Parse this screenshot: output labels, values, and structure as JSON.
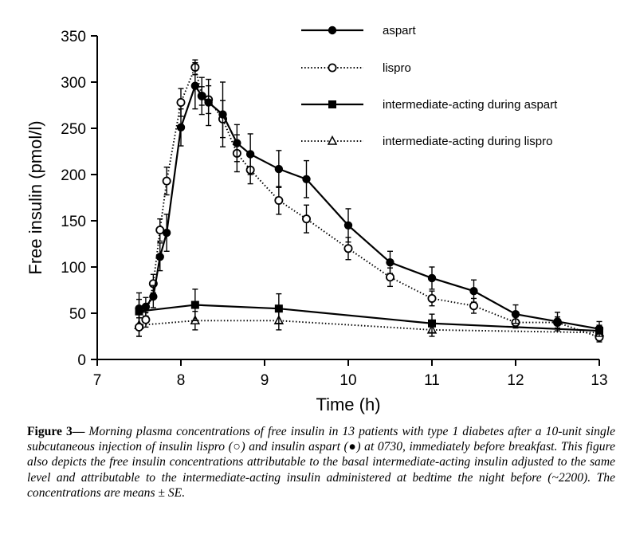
{
  "chart_data": {
    "type": "line",
    "xlabel": "Time (h)",
    "ylabel": "Free insulin (pmol/l)",
    "xlim": [
      7,
      13
    ],
    "ylim": [
      0,
      350
    ],
    "xticks": [
      7,
      8,
      9,
      10,
      11,
      12,
      13
    ],
    "yticks": [
      0,
      50,
      100,
      150,
      200,
      250,
      300,
      350
    ],
    "legend_position": "top-right",
    "series": [
      {
        "name": "aspart",
        "line": "solid",
        "marker": "filled-circle",
        "x": [
          7.5,
          7.58,
          7.67,
          7.75,
          7.83,
          8.0,
          8.17,
          8.25,
          8.33,
          8.5,
          8.67,
          8.83,
          9.17,
          9.5,
          10.0,
          10.5,
          11.0,
          11.5,
          12.0,
          12.5,
          13.0
        ],
        "y": [
          55,
          57,
          68,
          111,
          137,
          251,
          296,
          285,
          278,
          265,
          234,
          222,
          206,
          195,
          145,
          105,
          88,
          74,
          49,
          41,
          33
        ],
        "err": [
          10,
          10,
          12,
          15,
          20,
          20,
          25,
          20,
          25,
          35,
          20,
          22,
          20,
          20,
          18,
          12,
          12,
          12,
          10,
          10,
          8
        ]
      },
      {
        "name": "lispro",
        "line": "dotted",
        "marker": "open-circle",
        "x": [
          7.5,
          7.58,
          7.67,
          7.75,
          7.83,
          8.0,
          8.17,
          8.25,
          8.33,
          8.5,
          8.67,
          8.83,
          9.17,
          9.5,
          10.0,
          10.5,
          11.0,
          11.5,
          12.0,
          12.5,
          13.0
        ],
        "y": [
          35,
          43,
          82,
          140,
          193,
          278,
          316,
          285,
          281,
          260,
          223,
          205,
          172,
          152,
          120,
          89,
          66,
          58,
          40,
          40,
          24
        ],
        "err": [
          10,
          8,
          10,
          12,
          15,
          15,
          8,
          10,
          15,
          20,
          20,
          15,
          15,
          15,
          12,
          10,
          8,
          8,
          6,
          6,
          5
        ]
      },
      {
        "name": "intermediate-acting during aspart",
        "line": "solid",
        "marker": "filled-square",
        "x": [
          7.5,
          8.17,
          9.17,
          11.0,
          13.0
        ],
        "y": [
          52,
          59,
          55,
          39,
          31
        ],
        "err": [
          20,
          17,
          16,
          10,
          6
        ]
      },
      {
        "name": "intermediate-acting during lispro",
        "line": "dotted",
        "marker": "open-triangle",
        "x": [
          7.5,
          8.17,
          9.17,
          11.0,
          13.0
        ],
        "y": [
          37,
          42,
          42,
          32,
          29
        ],
        "err": [
          12,
          10,
          10,
          7,
          5
        ]
      }
    ]
  },
  "caption": {
    "label": "Figure 3—",
    "text": " Morning plasma concentrations of free insulin in 13 patients with type 1 diabetes after a 10-unit single subcutaneous injection of insulin lispro (○) and insulin aspart (●) at 0730, immediately before breakfast. This figure also depicts the free insulin concentrations attributable to the basal intermediate-acting insulin adjusted to the same level and attributable to the intermediate-acting insulin administered at bedtime the night before (~2200). The concentrations are means ± SE."
  },
  "colors": {
    "ink": "#000000",
    "background": "#ffffff"
  }
}
